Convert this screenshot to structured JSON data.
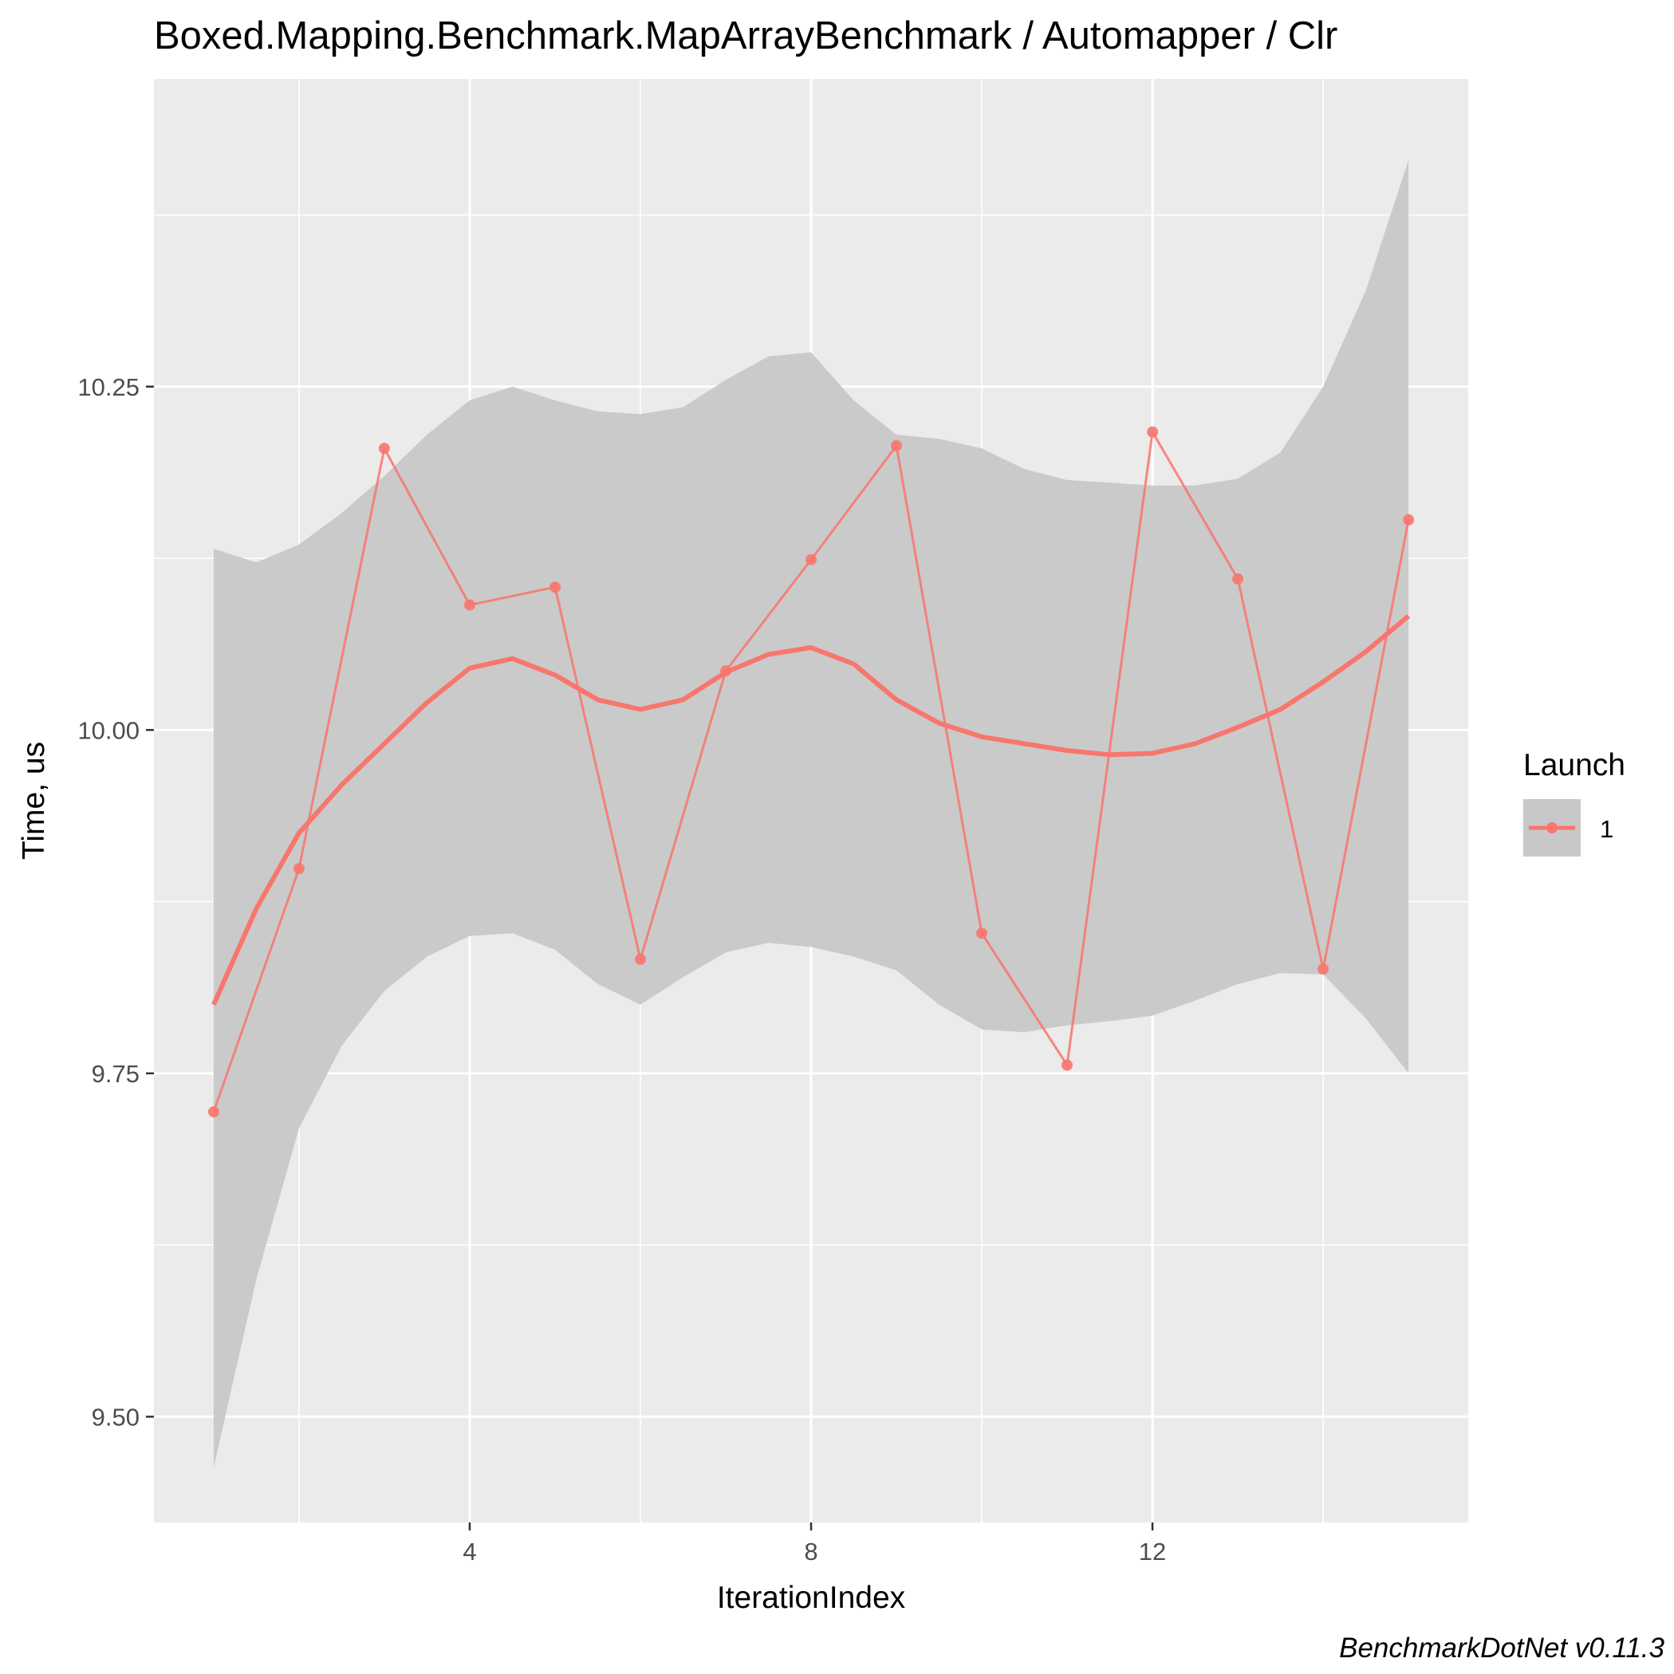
{
  "chart_data": {
    "type": "line",
    "title": "Boxed.Mapping.Benchmark.MapArrayBenchmark / Automapper / Clr",
    "xlabel": "IterationIndex",
    "ylabel": "Time, us",
    "caption": "BenchmarkDotNet v0.11.3",
    "xlim": [
      0.3,
      15.7
    ],
    "ylim": [
      9.423,
      10.474
    ],
    "x_ticks": [
      4,
      8,
      12
    ],
    "x_tick_labels": [
      "4",
      "8",
      "12"
    ],
    "y_ticks": [
      9.5,
      9.75,
      10.0,
      10.25
    ],
    "y_tick_labels": [
      "9.50",
      "9.75",
      "10.00",
      "10.25"
    ],
    "grid": true,
    "legend": {
      "title": "Launch",
      "position": "right",
      "entries": [
        "1"
      ]
    },
    "colors": {
      "series": "#f8766d",
      "ribbon": "#c8c8c8",
      "panel": "#ebebeb",
      "grid": "#ffffff"
    },
    "series": [
      {
        "name": "1",
        "x": [
          1,
          2,
          3,
          4,
          5,
          6,
          7,
          8,
          9,
          10,
          11,
          12,
          13,
          14,
          15
        ],
        "values": [
          9.722,
          9.899,
          10.205,
          10.091,
          10.104,
          9.833,
          10.043,
          10.124,
          10.207,
          9.852,
          9.756,
          10.217,
          10.11,
          9.826,
          10.153
        ]
      }
    ],
    "smooth": {
      "x": [
        1,
        1.5,
        2,
        2.5,
        3,
        3.5,
        4,
        4.5,
        5,
        5.5,
        6,
        6.5,
        7,
        7.5,
        8,
        8.5,
        9,
        9.5,
        10,
        10.5,
        11,
        11.5,
        12,
        12.5,
        13,
        13.5,
        14,
        14.5,
        15
      ],
      "y": [
        9.8,
        9.87,
        9.925,
        9.96,
        9.99,
        10.02,
        10.045,
        10.052,
        10.04,
        10.022,
        10.015,
        10.022,
        10.042,
        10.055,
        10.06,
        10.048,
        10.022,
        10.005,
        9.995,
        9.99,
        9.985,
        9.982,
        9.983,
        9.99,
        10.002,
        10.015,
        10.035,
        10.057,
        10.083
      ],
      "upper": [
        10.132,
        10.122,
        10.135,
        10.158,
        10.185,
        10.215,
        10.24,
        10.25,
        10.24,
        10.232,
        10.23,
        10.235,
        10.255,
        10.272,
        10.275,
        10.24,
        10.215,
        10.212,
        10.205,
        10.19,
        10.182,
        10.18,
        10.178,
        10.178,
        10.183,
        10.202,
        10.25,
        10.32,
        10.415
      ],
      "lower": [
        9.463,
        9.6,
        9.71,
        9.77,
        9.81,
        9.835,
        9.85,
        9.852,
        9.84,
        9.815,
        9.8,
        9.82,
        9.838,
        9.845,
        9.842,
        9.835,
        9.825,
        9.8,
        9.782,
        9.78,
        9.785,
        9.788,
        9.792,
        9.803,
        9.815,
        9.823,
        9.822,
        9.79,
        9.75
      ]
    }
  }
}
